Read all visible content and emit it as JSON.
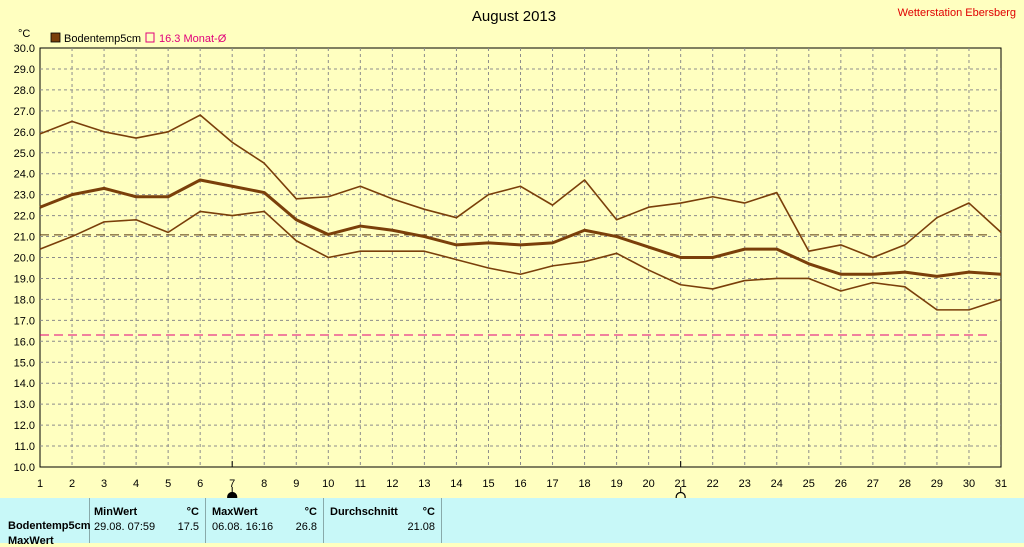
{
  "station": "Wetterstation Ebersberg",
  "chart_data": {
    "type": "line",
    "title": "August 2013",
    "ylabel": "°C",
    "ylim": [
      10.0,
      30.0
    ],
    "y_ticks": [
      "10.0",
      "11.0",
      "12.0",
      "13.0",
      "14.0",
      "15.0",
      "16.0",
      "17.0",
      "18.0",
      "19.0",
      "20.0",
      "21.0",
      "22.0",
      "23.0",
      "24.0",
      "25.0",
      "26.0",
      "27.0",
      "28.0",
      "29.0",
      "30.0"
    ],
    "x_ticks": [
      "1",
      "2",
      "3",
      "4",
      "5",
      "6",
      "7",
      "8",
      "9",
      "10",
      "11",
      "12",
      "13",
      "14",
      "15",
      "16",
      "17",
      "18",
      "19",
      "20",
      "21",
      "22",
      "23",
      "24",
      "25",
      "26",
      "27",
      "28",
      "29",
      "30",
      "31"
    ],
    "x": [
      1,
      2,
      3,
      4,
      5,
      6,
      7,
      8,
      9,
      10,
      11,
      12,
      13,
      14,
      15,
      16,
      17,
      18,
      19,
      20,
      21,
      22,
      23,
      24,
      25,
      26,
      27,
      28,
      29,
      30,
      31
    ],
    "grid": true,
    "legend_position": "top-left",
    "legend": [
      {
        "label": "Bodentemp5cm",
        "color": "#7a3f0a",
        "marker": "filled-square"
      },
      {
        "label": "16.3 Monat-Ø",
        "color": "#e0007a",
        "marker": "open-square"
      }
    ],
    "series": [
      {
        "name": "Bodentemp5cm",
        "role": "max",
        "color": "#7a3f0a",
        "values": [
          25.9,
          26.5,
          26.0,
          25.7,
          26.0,
          26.8,
          25.5,
          24.5,
          22.8,
          22.9,
          23.4,
          22.8,
          22.3,
          21.9,
          23.0,
          23.4,
          22.5,
          23.7,
          21.8,
          22.4,
          22.6,
          22.9,
          22.6,
          23.1,
          20.3,
          20.6,
          20.0,
          20.6,
          21.9,
          22.6,
          21.2
        ]
      },
      {
        "name": "Bodentemp5cm",
        "role": "avg",
        "color": "#7a3f0a",
        "values": [
          22.4,
          23.0,
          23.3,
          22.9,
          22.9,
          23.7,
          23.4,
          23.1,
          21.8,
          21.1,
          21.5,
          21.3,
          21.0,
          20.6,
          20.7,
          20.6,
          20.7,
          21.3,
          21.0,
          20.5,
          20.0,
          20.0,
          20.4,
          20.4,
          19.7,
          19.2,
          19.2,
          19.3,
          19.1,
          19.3,
          19.2
        ]
      },
      {
        "name": "Bodentemp5cm",
        "role": "min",
        "color": "#7a3f0a",
        "values": [
          20.4,
          21.0,
          21.7,
          21.8,
          21.2,
          22.2,
          22.0,
          22.2,
          20.8,
          20.0,
          20.3,
          20.3,
          20.3,
          19.9,
          19.5,
          19.2,
          19.6,
          19.8,
          20.2,
          19.4,
          18.7,
          18.5,
          18.9,
          19.0,
          19.0,
          18.4,
          18.8,
          18.6,
          17.5,
          17.5,
          18.0
        ]
      }
    ],
    "reference_lines": [
      {
        "value": 21.08,
        "color": "#5a3a10",
        "style": "dashed"
      },
      {
        "value": 16.3,
        "color": "#e0007a",
        "style": "dashed"
      }
    ],
    "markers": [
      {
        "x": 7,
        "symbol": "●",
        "meaning": "full moon"
      },
      {
        "x": 21,
        "symbol": "○",
        "meaning": "new moon"
      }
    ]
  },
  "stats": {
    "row_label": "Bodentemp5cm",
    "row_label_next": "MaxWert",
    "min": {
      "header": "MinWert",
      "unit": "°C",
      "datetime": "29.08.  07:59",
      "value": "17.5"
    },
    "max": {
      "header": "MaxWert",
      "unit": "°C",
      "datetime": "06.08.  16:16",
      "value": "26.8"
    },
    "avg": {
      "header": "Durchschnitt",
      "unit": "°C",
      "value": "21.08"
    }
  }
}
